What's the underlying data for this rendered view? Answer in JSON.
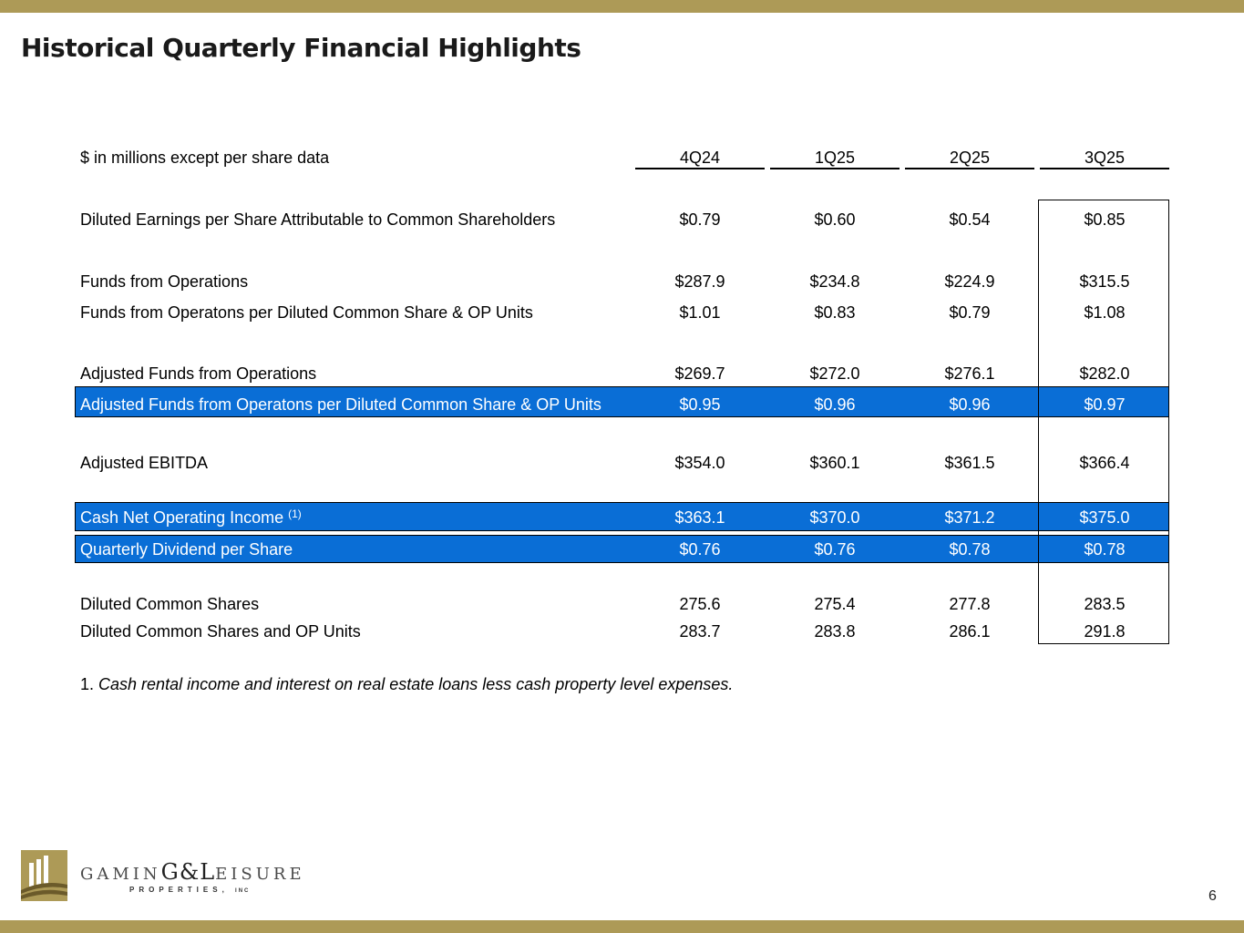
{
  "colors": {
    "gold": "#ad9a57",
    "highlight_blue": "#0a6ed6"
  },
  "title": "Historical Quarterly Financial Highlights",
  "table": {
    "units_label": "$ in millions except per share data",
    "columns": [
      "4Q24",
      "1Q25",
      "2Q25",
      "3Q25"
    ],
    "rows": [
      {
        "label": "Diluted Earnings per Share Attributable to Common Shareholders",
        "values": [
          "$0.79",
          "$0.60",
          "$0.54",
          "$0.85"
        ]
      },
      {
        "label": "Funds from Operations",
        "values": [
          "$287.9",
          "$234.8",
          "$224.9",
          "$315.5"
        ]
      },
      {
        "label": "Funds from Operatons per Diluted Common Share & OP Units",
        "values": [
          "$1.01",
          "$0.83",
          "$0.79",
          "$1.08"
        ]
      },
      {
        "label": "Adjusted Funds from Operations",
        "values": [
          "$269.7",
          "$272.0",
          "$276.1",
          "$282.0"
        ]
      },
      {
        "label": "Adjusted Funds from Operatons per Diluted Common Share & OP Units",
        "values": [
          "$0.95",
          "$0.96",
          "$0.96",
          "$0.97"
        ]
      },
      {
        "label": "Adjusted EBITDA",
        "values": [
          "$354.0",
          "$360.1",
          "$361.5",
          "$366.4"
        ]
      },
      {
        "label": "Cash Net Operating Income",
        "footnote_ref": "(1)",
        "values": [
          "$363.1",
          "$370.0",
          "$371.2",
          "$375.0"
        ]
      },
      {
        "label": "Quarterly Dividend per Share",
        "values": [
          "$0.76",
          "$0.76",
          "$0.78",
          "$0.78"
        ]
      },
      {
        "label": "Diluted Common Shares",
        "values": [
          "275.6",
          "275.4",
          "277.8",
          "283.5"
        ]
      },
      {
        "label": "Diluted Common Shares and OP Units",
        "values": [
          "283.7",
          "283.8",
          "286.1",
          "291.8"
        ]
      }
    ]
  },
  "footnote": {
    "number": "1.",
    "text": "Cash rental income and interest on real estate loans less cash property level expenses."
  },
  "logo": {
    "wordmark_pre": "GAMIN",
    "wordmark_mid": "G&L",
    "wordmark_post": "EISURE",
    "subline": "PROPERTIES,",
    "subline_suffix": "INC"
  },
  "page_number": "6"
}
